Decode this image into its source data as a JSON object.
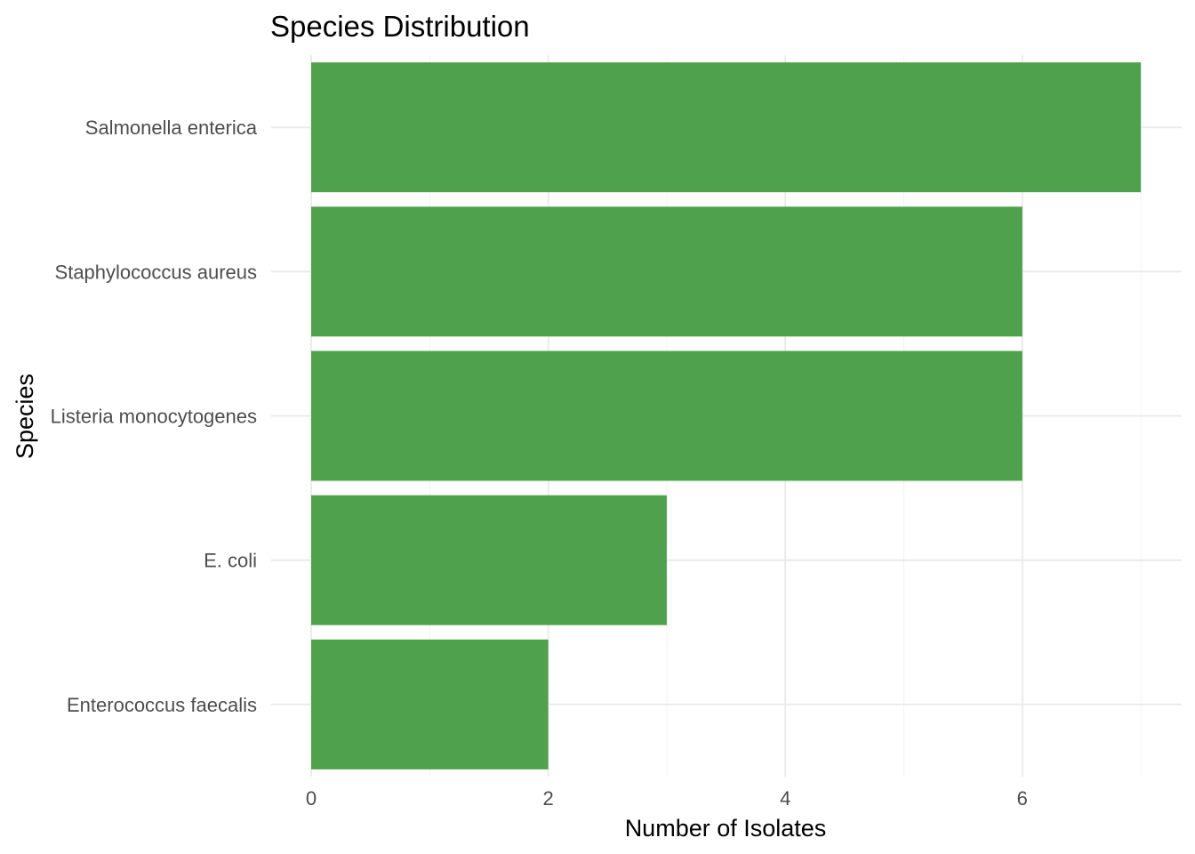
{
  "chart_data": {
    "type": "bar",
    "orientation": "horizontal",
    "title": "Species Distribution",
    "xlabel": "Number of Isolates",
    "ylabel": "Species",
    "categories": [
      "Salmonella enterica",
      "Staphylococcus aureus",
      "Listeria monocytogenes",
      "E. coli",
      "Enterococcus faecalis"
    ],
    "values": [
      7,
      6,
      6,
      3,
      2
    ],
    "xlim": [
      0,
      7.35
    ],
    "x_ticks": [
      0,
      2,
      4,
      6
    ],
    "x_minor_ticks": [
      1,
      3,
      5,
      7
    ],
    "grid": true,
    "legend": "none",
    "bar_color": "#4a9e47"
  }
}
